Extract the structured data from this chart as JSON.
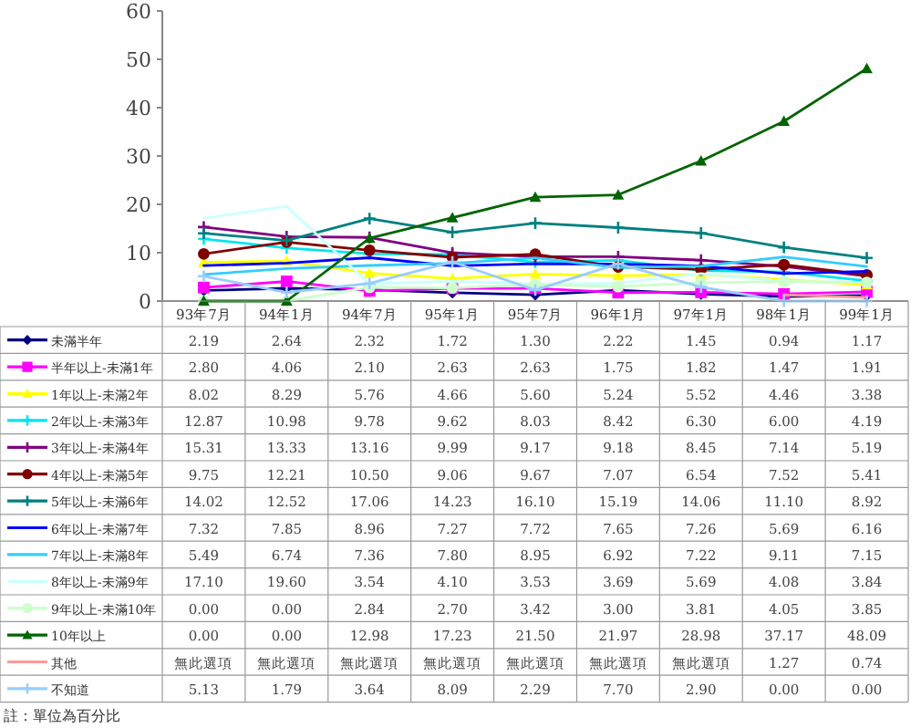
{
  "chart_data": {
    "type": "line",
    "categories": [
      "93年7月",
      "94年1月",
      "94年7月",
      "95年1月",
      "95年7月",
      "96年1月",
      "97年1月",
      "98年1月",
      "99年1月"
    ],
    "ylim": [
      0,
      60
    ],
    "yticks": [
      0,
      10,
      20,
      30,
      40,
      50,
      60
    ],
    "grid": false,
    "legend": "bottom",
    "series": [
      {
        "name": "未滿半年",
        "color": "#000080",
        "marker": "diamond",
        "values": [
          2.19,
          2.64,
          2.32,
          1.72,
          1.3,
          2.22,
          1.45,
          0.94,
          1.17
        ],
        "value_labels": [
          "2.19",
          "2.64",
          "2.32",
          "1.72",
          "1.30",
          "2.22",
          "1.45",
          "0.94",
          "1.17"
        ]
      },
      {
        "name": "半年以上-未滿1年",
        "color": "#ff00ff",
        "marker": "square",
        "values": [
          2.8,
          4.06,
          2.1,
          2.63,
          2.63,
          1.75,
          1.82,
          1.47,
          1.91
        ],
        "value_labels": [
          "2.80",
          "4.06",
          "2.10",
          "2.63",
          "2.63",
          "1.75",
          "1.82",
          "1.47",
          "1.91"
        ]
      },
      {
        "name": "1年以上-未滿2年",
        "color": "#ffff00",
        "marker": "triangle",
        "values": [
          8.02,
          8.29,
          5.76,
          4.66,
          5.6,
          5.24,
          5.52,
          4.46,
          3.38
        ],
        "value_labels": [
          "8.02",
          "8.29",
          "5.76",
          "4.66",
          "5.60",
          "5.24",
          "5.52",
          "4.46",
          "3.38"
        ]
      },
      {
        "name": "2年以上-未滿3年",
        "color": "#00e5ee",
        "marker": "cross",
        "values": [
          12.87,
          10.98,
          9.78,
          9.62,
          8.03,
          8.42,
          6.3,
          6.0,
          4.19
        ],
        "value_labels": [
          "12.87",
          "10.98",
          "9.78",
          "9.62",
          "8.03",
          "8.42",
          "6.30",
          "6.00",
          "4.19"
        ]
      },
      {
        "name": "3年以上-未滿4年",
        "color": "#800080",
        "marker": "cross",
        "values": [
          15.31,
          13.33,
          13.16,
          9.99,
          9.17,
          9.18,
          8.45,
          7.14,
          5.19
        ],
        "value_labels": [
          "15.31",
          "13.33",
          "13.16",
          "9.99",
          "9.17",
          "9.18",
          "8.45",
          "7.14",
          "5.19"
        ]
      },
      {
        "name": "4年以上-未滿5年",
        "color": "#800000",
        "marker": "circle",
        "values": [
          9.75,
          12.21,
          10.5,
          9.06,
          9.67,
          7.07,
          6.54,
          7.52,
          5.41
        ],
        "value_labels": [
          "9.75",
          "12.21",
          "10.50",
          "9.06",
          "9.67",
          "7.07",
          "6.54",
          "7.52",
          "5.41"
        ]
      },
      {
        "name": "5年以上-未滿6年",
        "color": "#008080",
        "marker": "cross",
        "values": [
          14.02,
          12.52,
          17.06,
          14.23,
          16.1,
          15.19,
          14.06,
          11.1,
          8.92
        ],
        "value_labels": [
          "14.02",
          "12.52",
          "17.06",
          "14.23",
          "16.10",
          "15.19",
          "14.06",
          "11.10",
          "8.92"
        ]
      },
      {
        "name": "6年以上-未滿7年",
        "color": "#0000ff",
        "marker": "none",
        "values": [
          7.32,
          7.85,
          8.96,
          7.27,
          7.72,
          7.65,
          7.26,
          5.69,
          6.16
        ],
        "value_labels": [
          "7.32",
          "7.85",
          "8.96",
          "7.27",
          "7.72",
          "7.65",
          "7.26",
          "5.69",
          "6.16"
        ]
      },
      {
        "name": "7年以上-未滿8年",
        "color": "#33ccff",
        "marker": "none",
        "values": [
          5.49,
          6.74,
          7.36,
          7.8,
          8.95,
          6.92,
          7.22,
          9.11,
          7.15
        ],
        "value_labels": [
          "5.49",
          "6.74",
          "7.36",
          "7.80",
          "8.95",
          "6.92",
          "7.22",
          "9.11",
          "7.15"
        ]
      },
      {
        "name": "8年以上-未滿9年",
        "color": "#ccffff",
        "marker": "none",
        "values": [
          17.1,
          19.6,
          3.54,
          4.1,
          3.53,
          3.69,
          5.69,
          4.08,
          3.84
        ],
        "value_labels": [
          "17.10",
          "19.60",
          "3.54",
          "4.10",
          "3.53",
          "3.69",
          "5.69",
          "4.08",
          "3.84"
        ]
      },
      {
        "name": "9年以上-未滿10年",
        "color": "#ccffcc",
        "marker": "circle",
        "values": [
          0.0,
          0.0,
          2.84,
          2.7,
          3.42,
          3.0,
          3.81,
          4.05,
          3.85
        ],
        "value_labels": [
          "0.00",
          "0.00",
          "2.84",
          "2.70",
          "3.42",
          "3.00",
          "3.81",
          "4.05",
          "3.85"
        ]
      },
      {
        "name": "10年以上",
        "color": "#006400",
        "marker": "triangle",
        "values": [
          0.0,
          0.0,
          12.98,
          17.23,
          21.5,
          21.97,
          28.98,
          37.17,
          48.09
        ],
        "value_labels": [
          "0.00",
          "0.00",
          "12.98",
          "17.23",
          "21.50",
          "21.97",
          "28.98",
          "37.17",
          "48.09"
        ]
      },
      {
        "name": "其他",
        "color": "#ff9999",
        "marker": "none",
        "values": [
          null,
          null,
          null,
          null,
          null,
          null,
          null,
          1.27,
          0.74
        ],
        "value_labels": [
          "無此選項",
          "無此選項",
          "無此選項",
          "無此選項",
          "無此選項",
          "無此選項",
          "無此選項",
          "1.27",
          "0.74"
        ]
      },
      {
        "name": "不知道",
        "color": "#99ccff",
        "marker": "cross",
        "values": [
          5.13,
          1.79,
          3.64,
          8.09,
          2.29,
          7.7,
          2.9,
          0.0,
          0.0
        ],
        "value_labels": [
          "5.13",
          "1.79",
          "3.64",
          "8.09",
          "2.29",
          "7.70",
          "2.90",
          "0.00",
          "0.00"
        ]
      }
    ],
    "annotations": [
      "註：單位為百分比"
    ]
  }
}
